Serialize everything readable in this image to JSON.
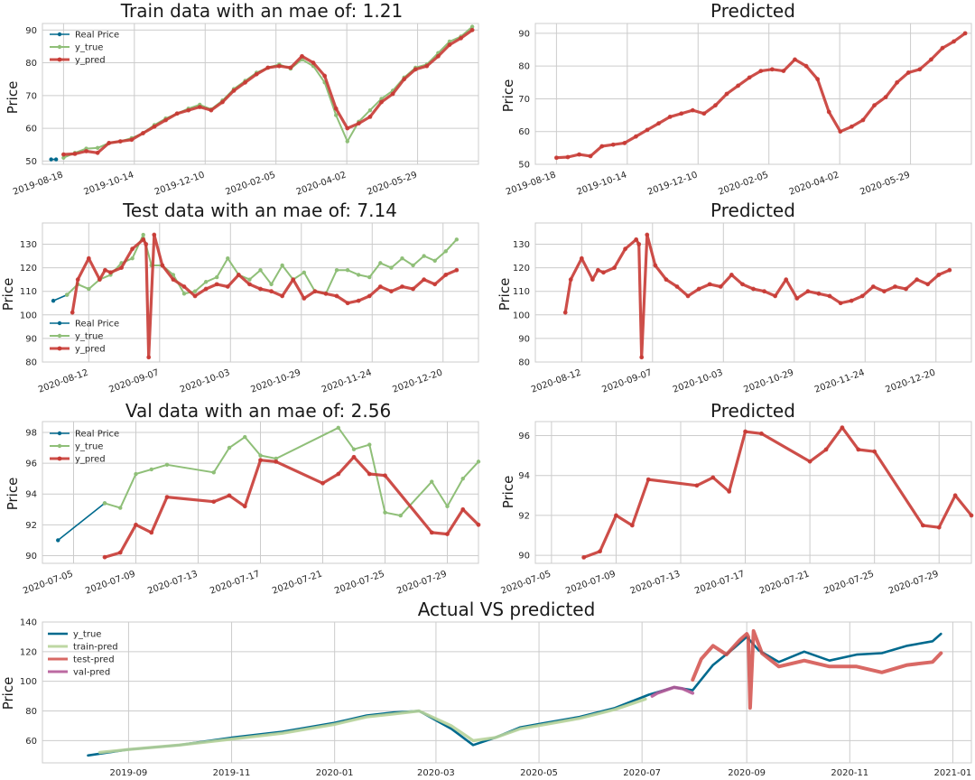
{
  "colors": {
    "real_price": "#006a8e",
    "y_true_green": "#8fbf78",
    "y_pred_red": "#c83b35",
    "overlay_true": "#006a8e",
    "train_pred": "#b7d39a",
    "test_pred": "#d24f4a",
    "val_pred": "#b55a98",
    "grid": "#cccccc"
  },
  "chart_data": [
    {
      "id": "train",
      "type": "line",
      "title": "Train data with an mae of:  1.21",
      "ylabel": "Price",
      "x_start": "2019-08-18",
      "x_end": "2020-07-12",
      "x_range": [
        "2019-08-01",
        "2020-07-17"
      ],
      "x_ticks": [
        "2019-08-18",
        "2019-10-14",
        "2019-12-10",
        "2020-02-05",
        "2020-04-02",
        "2020-05-29"
      ],
      "ylim": [
        49,
        92
      ],
      "y_ticks": [
        50,
        60,
        70,
        80,
        90
      ],
      "legend": [
        "Real Price",
        "y_true",
        "y_pred"
      ],
      "series": [
        {
          "name": "Real Price",
          "x": [
            "2019-08-08",
            "2019-08-12"
          ],
          "values": [
            50.5,
            50.5
          ]
        },
        {
          "name": "y_true",
          "values": [
            51.0,
            52.5,
            53.8,
            54.0,
            55.5,
            56.0,
            57.0,
            58.5,
            61.0,
            63.0,
            64.5,
            66.0,
            67.2,
            65.8,
            68.5,
            72.0,
            74.5,
            77.0,
            78.5,
            79.5,
            78.2,
            81.0,
            79.0,
            74.0,
            64.0,
            56.0,
            62.0,
            65.5,
            69.0,
            71.5,
            75.5,
            78.5,
            79.5,
            83.0,
            86.5,
            88.0,
            91.0
          ]
        },
        {
          "name": "y_pred",
          "values": [
            52.0,
            52.2,
            53.0,
            52.5,
            55.5,
            56.0,
            56.5,
            58.5,
            60.5,
            62.5,
            64.5,
            65.5,
            66.5,
            65.5,
            68.0,
            71.5,
            74.0,
            76.5,
            78.5,
            79.0,
            78.5,
            82.0,
            80.0,
            76.0,
            66.0,
            60.0,
            61.5,
            63.5,
            68.0,
            70.5,
            75.0,
            78.0,
            79.0,
            82.0,
            85.5,
            87.5,
            90.0
          ]
        }
      ]
    },
    {
      "id": "train_pred",
      "type": "line",
      "title": "Predicted",
      "ylabel": "Price",
      "x_start": "2019-08-18",
      "x_end": "2020-07-12",
      "x_range": [
        "2019-08-01",
        "2020-07-17"
      ],
      "x_ticks": [
        "2019-08-18",
        "2019-10-14",
        "2019-12-10",
        "2020-02-05",
        "2020-04-02",
        "2020-05-29"
      ],
      "ylim": [
        50,
        93
      ],
      "y_ticks": [
        50,
        60,
        70,
        80,
        90
      ],
      "series": [
        {
          "name": "y_pred",
          "values": [
            52.0,
            52.2,
            53.0,
            52.5,
            55.5,
            56.0,
            56.5,
            58.5,
            60.5,
            62.5,
            64.5,
            65.5,
            66.5,
            65.5,
            68.0,
            71.5,
            74.0,
            76.5,
            78.5,
            79.0,
            78.5,
            82.0,
            80.0,
            76.0,
            66.0,
            60.0,
            61.5,
            63.5,
            68.0,
            70.5,
            75.0,
            78.0,
            79.0,
            82.0,
            85.5,
            87.5,
            90.0
          ]
        }
      ]
    },
    {
      "id": "test",
      "type": "line",
      "title": "Test data with an mae of:  7.14",
      "ylabel": "Price",
      "x_range": [
        "2020-07-26",
        "2021-01-02"
      ],
      "x_ticks": [
        "2020-08-12",
        "2020-09-07",
        "2020-10-03",
        "2020-10-29",
        "2020-11-24",
        "2020-12-20"
      ],
      "ylim": [
        80,
        139
      ],
      "y_ticks": [
        80,
        90,
        100,
        110,
        120,
        130
      ],
      "legend": [
        "Real Price",
        "y_true",
        "y_pred"
      ],
      "series": [
        {
          "name": "Real Price",
          "x": [
            "2020-07-30",
            "2020-08-04"
          ],
          "values": [
            106,
            108.5
          ]
        },
        {
          "name": "y_true",
          "x": [
            "2020-08-04",
            "2020-08-08",
            "2020-08-12",
            "2020-08-16",
            "2020-08-20",
            "2020-08-24",
            "2020-08-28",
            "2020-09-01",
            "2020-09-04",
            "2020-09-08",
            "2020-09-12",
            "2020-09-16",
            "2020-09-20",
            "2020-09-24",
            "2020-09-28",
            "2020-10-02",
            "2020-10-06",
            "2020-10-10",
            "2020-10-14",
            "2020-10-18",
            "2020-10-22",
            "2020-10-26",
            "2020-10-30",
            "2020-11-03",
            "2020-11-07",
            "2020-11-11",
            "2020-11-15",
            "2020-11-19",
            "2020-11-23",
            "2020-11-27",
            "2020-12-01",
            "2020-12-05",
            "2020-12-09",
            "2020-12-13",
            "2020-12-17",
            "2020-12-21",
            "2020-12-25"
          ],
          "values": [
            108.5,
            113,
            111,
            115,
            117,
            122,
            124,
            134,
            121,
            121,
            117,
            109,
            110,
            114,
            116,
            124,
            117,
            115,
            119,
            113,
            121,
            115,
            118,
            110,
            109,
            119,
            119,
            117,
            116,
            122,
            120,
            124,
            121,
            125,
            123,
            127,
            132
          ]
        },
        {
          "name": "y_pred",
          "x": [
            "2020-08-06",
            "2020-08-08",
            "2020-08-12",
            "2020-08-16",
            "2020-08-18",
            "2020-08-20",
            "2020-08-24",
            "2020-08-28",
            "2020-09-01",
            "2020-09-02",
            "2020-09-03",
            "2020-09-05",
            "2020-09-08",
            "2020-09-12",
            "2020-09-16",
            "2020-09-20",
            "2020-09-24",
            "2020-09-28",
            "2020-10-02",
            "2020-10-06",
            "2020-10-10",
            "2020-10-14",
            "2020-10-18",
            "2020-10-22",
            "2020-10-26",
            "2020-10-30",
            "2020-11-03",
            "2020-11-07",
            "2020-11-11",
            "2020-11-15",
            "2020-11-19",
            "2020-11-23",
            "2020-11-27",
            "2020-12-01",
            "2020-12-05",
            "2020-12-09",
            "2020-12-13",
            "2020-12-17",
            "2020-12-21",
            "2020-12-25"
          ],
          "values": [
            101,
            115,
            124,
            115,
            119,
            118,
            120,
            128,
            132,
            130,
            82,
            134,
            121,
            115,
            112,
            108,
            111,
            113,
            112,
            117,
            113,
            111,
            110,
            108,
            115,
            107,
            110,
            109,
            108,
            105,
            106,
            108,
            112,
            110,
            112,
            111,
            115,
            113,
            117,
            119
          ]
        }
      ]
    },
    {
      "id": "test_pred",
      "type": "line",
      "title": "Predicted",
      "ylabel": "Price",
      "x_range": [
        "2020-07-26",
        "2021-01-02"
      ],
      "x_ticks": [
        "2020-08-12",
        "2020-09-07",
        "2020-10-03",
        "2020-10-29",
        "2020-11-24",
        "2020-12-20"
      ],
      "ylim": [
        80,
        139
      ],
      "y_ticks": [
        80,
        90,
        100,
        110,
        120,
        130
      ],
      "series": [
        {
          "name": "y_pred",
          "x": [
            "2020-08-06",
            "2020-08-08",
            "2020-08-12",
            "2020-08-16",
            "2020-08-18",
            "2020-08-20",
            "2020-08-24",
            "2020-08-28",
            "2020-09-01",
            "2020-09-02",
            "2020-09-03",
            "2020-09-05",
            "2020-09-08",
            "2020-09-12",
            "2020-09-16",
            "2020-09-20",
            "2020-09-24",
            "2020-09-28",
            "2020-10-02",
            "2020-10-06",
            "2020-10-10",
            "2020-10-14",
            "2020-10-18",
            "2020-10-22",
            "2020-10-26",
            "2020-10-30",
            "2020-11-03",
            "2020-11-07",
            "2020-11-11",
            "2020-11-15",
            "2020-11-19",
            "2020-11-23",
            "2020-11-27",
            "2020-12-01",
            "2020-12-05",
            "2020-12-09",
            "2020-12-13",
            "2020-12-17",
            "2020-12-21",
            "2020-12-25"
          ],
          "values": [
            101,
            115,
            124,
            115,
            119,
            118,
            120,
            128,
            132,
            130,
            82,
            134,
            121,
            115,
            112,
            108,
            111,
            113,
            112,
            117,
            113,
            111,
            110,
            108,
            115,
            107,
            110,
            109,
            108,
            105,
            106,
            108,
            112,
            110,
            112,
            111,
            115,
            113,
            117,
            119
          ]
        }
      ]
    },
    {
      "id": "val",
      "type": "line",
      "title": "Val data with an mae of:  2.56",
      "ylabel": "Price",
      "x_range": [
        "2020-07-03",
        "2020-07-31"
      ],
      "x_ticks": [
        "2020-07-05",
        "2020-07-09",
        "2020-07-13",
        "2020-07-17",
        "2020-07-21",
        "2020-07-25",
        "2020-07-29"
      ],
      "ylim": [
        89.5,
        98.7
      ],
      "y_ticks": [
        90,
        92,
        94,
        96,
        98
      ],
      "legend": [
        "Real Price",
        "y_true",
        "y_pred"
      ],
      "series": [
        {
          "name": "Real Price",
          "x": [
            "2020-07-04",
            "2020-07-07"
          ],
          "values": [
            91.0,
            93.4
          ]
        },
        {
          "name": "y_true",
          "x": [
            "2020-07-07",
            "2020-07-08",
            "2020-07-09",
            "2020-07-10",
            "2020-07-11",
            "2020-07-14",
            "2020-07-15",
            "2020-07-16",
            "2020-07-17",
            "2020-07-18",
            "2020-07-22",
            "2020-07-23",
            "2020-07-24",
            "2020-07-25",
            "2020-07-26",
            "2020-07-28",
            "2020-07-29",
            "2020-07-30",
            "2020-07-31"
          ],
          "values": [
            93.4,
            93.1,
            95.3,
            95.6,
            95.9,
            95.4,
            97.0,
            97.7,
            96.5,
            96.3,
            98.3,
            96.9,
            97.2,
            92.8,
            92.6,
            94.8,
            93.2,
            95.0,
            96.1
          ]
        },
        {
          "name": "y_pred",
          "x": [
            "2020-07-07",
            "2020-07-08",
            "2020-07-09",
            "2020-07-10",
            "2020-07-11",
            "2020-07-14",
            "2020-07-15",
            "2020-07-16",
            "2020-07-17",
            "2020-07-18",
            "2020-07-21",
            "2020-07-22",
            "2020-07-23",
            "2020-07-24",
            "2020-07-25",
            "2020-07-28",
            "2020-07-29",
            "2020-07-30",
            "2020-07-31"
          ],
          "values": [
            89.9,
            90.2,
            92.0,
            91.5,
            93.8,
            93.5,
            93.9,
            93.2,
            96.2,
            96.1,
            94.7,
            95.3,
            96.4,
            95.3,
            95.2,
            91.5,
            91.4,
            93.0,
            92.0
          ]
        }
      ]
    },
    {
      "id": "val_pred",
      "type": "line",
      "title": "Predicted",
      "ylabel": "Price",
      "x_range": [
        "2020-07-04",
        "2020-07-31"
      ],
      "x_ticks": [
        "2020-07-05",
        "2020-07-09",
        "2020-07-13",
        "2020-07-17",
        "2020-07-21",
        "2020-07-25",
        "2020-07-29"
      ],
      "ylim": [
        89.6,
        96.7
      ],
      "y_ticks": [
        90,
        92,
        94,
        96
      ],
      "series": [
        {
          "name": "y_pred",
          "x": [
            "2020-07-07",
            "2020-07-08",
            "2020-07-09",
            "2020-07-10",
            "2020-07-11",
            "2020-07-14",
            "2020-07-15",
            "2020-07-16",
            "2020-07-17",
            "2020-07-18",
            "2020-07-21",
            "2020-07-22",
            "2020-07-23",
            "2020-07-24",
            "2020-07-25",
            "2020-07-28",
            "2020-07-29",
            "2020-07-30",
            "2020-07-31"
          ],
          "values": [
            89.9,
            90.2,
            92.0,
            91.5,
            93.8,
            93.5,
            93.9,
            93.2,
            96.2,
            96.1,
            94.7,
            95.3,
            96.4,
            95.3,
            95.2,
            91.5,
            91.4,
            93.0,
            92.0
          ]
        }
      ]
    },
    {
      "id": "overall",
      "type": "line",
      "title": "Actual VS predicted",
      "ylabel": "Price",
      "x_range": [
        "2019-07-12",
        "2021-01-12"
      ],
      "x_ticks": [
        "2019-09",
        "2019-11",
        "2020-01",
        "2020-03",
        "2020-05",
        "2020-07",
        "2020-09",
        "2020-11",
        "2021-01"
      ],
      "x_tick_dates": [
        "2019-09-01",
        "2019-11-01",
        "2020-01-01",
        "2020-03-01",
        "2020-05-01",
        "2020-07-01",
        "2020-09-01",
        "2020-11-01",
        "2021-01-01"
      ],
      "ylim": [
        45,
        140
      ],
      "y_ticks": [
        60,
        80,
        100,
        120,
        140
      ],
      "legend": [
        "y_true",
        "train-pred",
        "test-pred",
        "val-pred"
      ],
      "series": [
        {
          "name": "y_true",
          "x": [
            "2019-08-08",
            "2019-09-01",
            "2019-10-01",
            "2019-11-01",
            "2019-12-01",
            "2020-01-01",
            "2020-01-20",
            "2020-02-05",
            "2020-02-20",
            "2020-03-10",
            "2020-03-23",
            "2020-04-05",
            "2020-04-20",
            "2020-05-05",
            "2020-05-25",
            "2020-06-15",
            "2020-07-05",
            "2020-07-20",
            "2020-07-31",
            "2020-08-12",
            "2020-08-24",
            "2020-09-01",
            "2020-09-08",
            "2020-09-20",
            "2020-10-05",
            "2020-10-20",
            "2020-11-05",
            "2020-11-20",
            "2020-12-05",
            "2020-12-20",
            "2020-12-25"
          ],
          "values": [
            50,
            54,
            57,
            62,
            66,
            72,
            77,
            79,
            80,
            68,
            57,
            62,
            69,
            72,
            76,
            82,
            91,
            96,
            94,
            111,
            122,
            130,
            121,
            113,
            120,
            114,
            118,
            119,
            124,
            127,
            132
          ]
        },
        {
          "name": "train-pred",
          "x": [
            "2019-08-15",
            "2019-09-01",
            "2019-10-01",
            "2019-11-01",
            "2019-12-01",
            "2020-01-01",
            "2020-01-20",
            "2020-02-05",
            "2020-02-20",
            "2020-03-10",
            "2020-03-23",
            "2020-04-05",
            "2020-04-20",
            "2020-05-05",
            "2020-05-25",
            "2020-06-15",
            "2020-07-03"
          ],
          "values": [
            52,
            54,
            57,
            61,
            65,
            71,
            76,
            78,
            80,
            70,
            60,
            62,
            68,
            71,
            75,
            81,
            88
          ]
        },
        {
          "name": "test-pred",
          "x": [
            "2020-07-31",
            "2020-08-05",
            "2020-08-12",
            "2020-08-20",
            "2020-08-28",
            "2020-09-01",
            "2020-09-02",
            "2020-09-03",
            "2020-09-05",
            "2020-09-10",
            "2020-09-20",
            "2020-10-05",
            "2020-10-20",
            "2020-11-05",
            "2020-11-20",
            "2020-12-05",
            "2020-12-20",
            "2020-12-25"
          ],
          "values": [
            101,
            115,
            124,
            118,
            128,
            132,
            130,
            82,
            134,
            119,
            110,
            114,
            110,
            110,
            106,
            111,
            113,
            119
          ]
        },
        {
          "name": "val-pred",
          "x": [
            "2020-07-07",
            "2020-07-10",
            "2020-07-15",
            "2020-07-20",
            "2020-07-25",
            "2020-07-31"
          ],
          "values": [
            90,
            92,
            94,
            96,
            95,
            92
          ]
        }
      ]
    }
  ]
}
